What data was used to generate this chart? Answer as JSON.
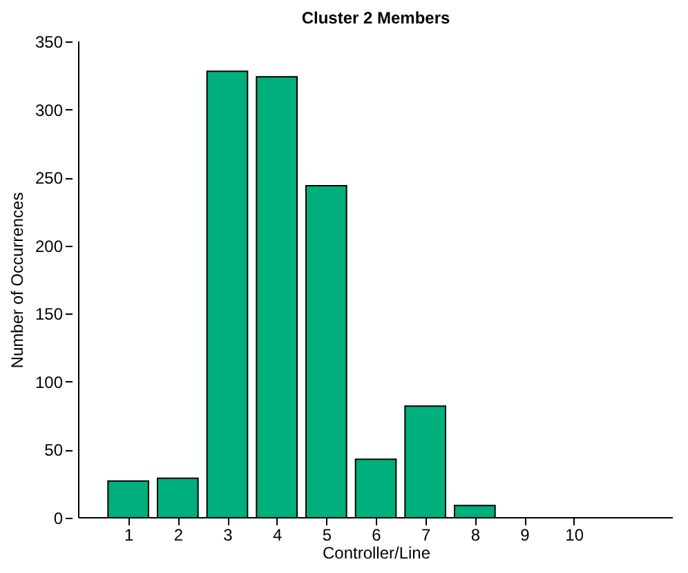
{
  "chart_data": {
    "type": "bar",
    "title": "Cluster 2 Members",
    "xlabel": "Controller/Line",
    "ylabel": "Number of Occurrences",
    "x": [
      1,
      2,
      3,
      4,
      5,
      6,
      7,
      8,
      9,
      10
    ],
    "values": [
      27,
      29,
      328,
      324,
      244,
      43,
      82,
      9,
      0,
      0
    ],
    "color": "#00b07c",
    "xlim": [
      0,
      12
    ],
    "xticks": [
      1,
      2,
      3,
      4,
      5,
      6,
      7,
      8,
      9,
      10
    ],
    "ylim": [
      0,
      350
    ],
    "yticks": [
      0,
      50,
      100,
      150,
      200,
      250,
      300,
      350
    ],
    "grid": false
  }
}
